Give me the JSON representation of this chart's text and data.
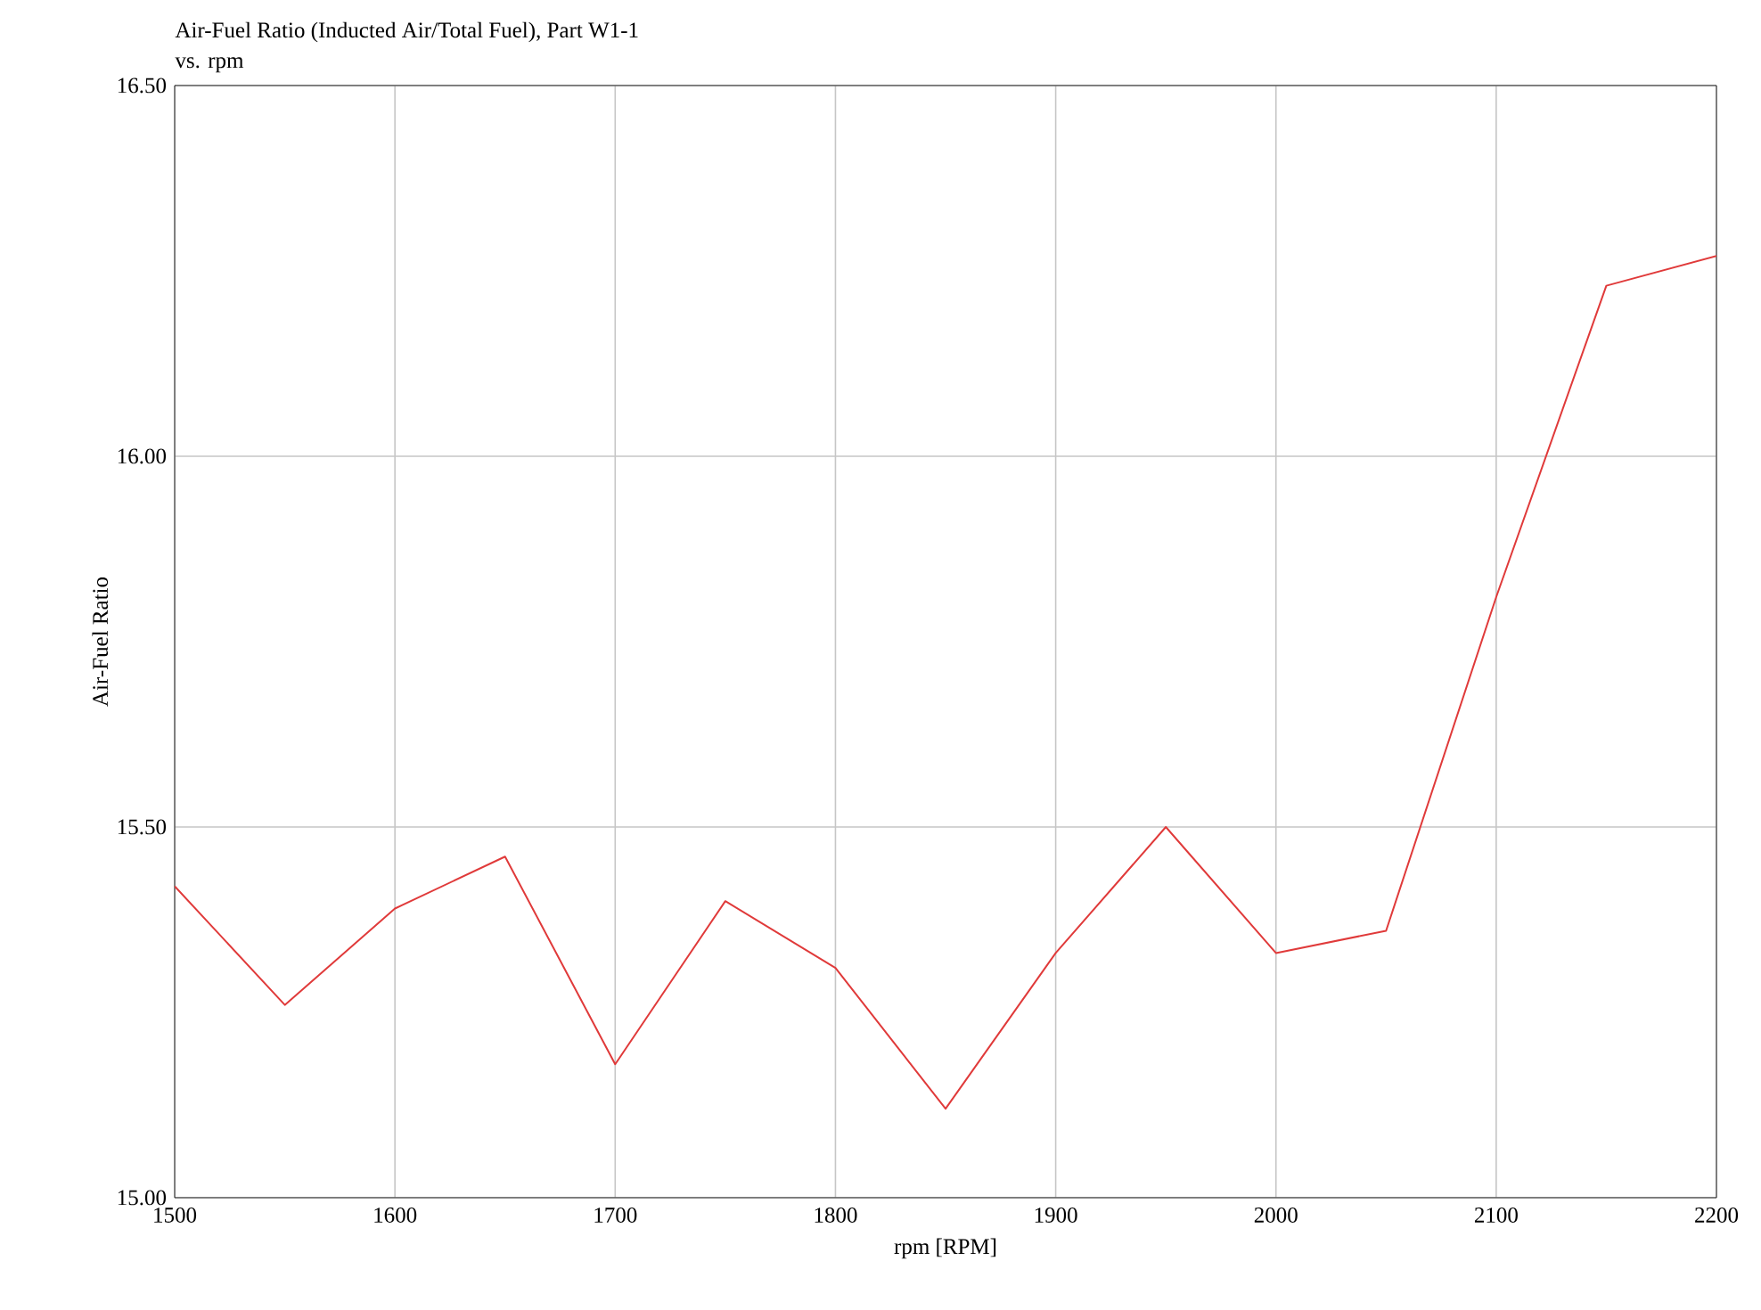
{
  "chart_data": {
    "type": "line",
    "title": "Air-Fuel Ratio (Inducted Air/Total Fuel), Part W1-1",
    "subtitle": "vs. rpm",
    "xlabel": "rpm [RPM]",
    "ylabel": "Air-Fuel Ratio",
    "x": [
      1500,
      1550,
      1600,
      1650,
      1700,
      1750,
      1800,
      1850,
      1900,
      1950,
      2000,
      2050,
      2100,
      2150,
      2200
    ],
    "series": [
      {
        "color": "#e03a3a",
        "values": [
          15.42,
          15.26,
          15.39,
          15.46,
          15.18,
          15.4,
          15.31,
          15.12,
          15.33,
          15.5,
          15.33,
          15.36,
          15.81,
          16.23,
          16.27
        ]
      }
    ],
    "xlim": [
      1500,
      2200
    ],
    "xticks": [
      1500,
      1600,
      1700,
      1800,
      1900,
      2000,
      2100,
      2200
    ],
    "ylim": [
      15.0,
      16.5
    ],
    "yticks": [
      {
        "value": 15.0,
        "label": "15.00"
      },
      {
        "value": 15.5,
        "label": "15.50"
      },
      {
        "value": 16.0,
        "label": "16.00"
      },
      {
        "value": 16.5,
        "label": "16.50"
      }
    ],
    "grid": true,
    "marker": "none",
    "line_style": "solid"
  }
}
